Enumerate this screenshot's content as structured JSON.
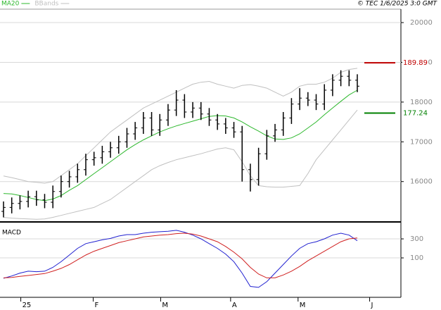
{
  "chart_data": [
    {
      "type": "ohlc",
      "source": "© TEC 1/6/2025 3:0 GMT",
      "xlim": [
        0,
        48.3
      ],
      "ylim": [
        15020,
        20320
      ],
      "yticks": [
        16000,
        17000,
        18000,
        19000,
        20000
      ],
      "grid": true,
      "bar_color": "#000000",
      "open": [
        15250,
        15350,
        15450,
        15500,
        15620,
        15540,
        15480,
        15750,
        16000,
        16120,
        16300,
        16550,
        16600,
        16750,
        16850,
        17000,
        17200,
        17350,
        17600,
        17300,
        17550,
        17800,
        18050,
        17750,
        17850,
        17700,
        17550,
        17450,
        17350,
        17250,
        16300,
        16050,
        16700,
        17150,
        17300,
        17600,
        17950,
        18100,
        18050,
        17950,
        18300,
        18550,
        18650,
        18550
      ],
      "high": [
        15500,
        15600,
        15650,
        15770,
        15770,
        15690,
        15900,
        16150,
        16270,
        16450,
        16700,
        16750,
        16900,
        17000,
        17150,
        17350,
        17500,
        17750,
        17750,
        17700,
        17950,
        18300,
        18200,
        18000,
        18000,
        17850,
        17700,
        17600,
        17500,
        17400,
        16450,
        16850,
        17300,
        17450,
        17750,
        18100,
        18350,
        18250,
        18200,
        18450,
        18700,
        18800,
        18800,
        18700
      ],
      "low": [
        15100,
        15200,
        15300,
        15350,
        15390,
        15330,
        15330,
        15600,
        15850,
        15970,
        16150,
        16400,
        16450,
        16600,
        16700,
        16850,
        17050,
        17200,
        17150,
        17150,
        17400,
        17650,
        17600,
        17600,
        17550,
        17400,
        17300,
        17200,
        17100,
        16000,
        15750,
        15900,
        16550,
        17000,
        17150,
        17450,
        17800,
        17900,
        17800,
        17800,
        18150,
        18400,
        18400,
        18250
      ],
      "close": [
        15350,
        15450,
        15500,
        15620,
        15540,
        15480,
        15750,
        16000,
        16120,
        16300,
        16550,
        16600,
        16750,
        16850,
        17000,
        17200,
        17350,
        17600,
        17300,
        17550,
        17800,
        18050,
        17750,
        17850,
        17700,
        17550,
        17450,
        17350,
        17250,
        16300,
        16050,
        16700,
        17150,
        17300,
        17600,
        17950,
        18100,
        18050,
        17950,
        18300,
        18550,
        18650,
        18550,
        18400
      ],
      "series": [
        {
          "name": "MA20",
          "color": "#2db82d",
          "values": [
            15700,
            15690,
            15650,
            15600,
            15550,
            15520,
            15560,
            15650,
            15780,
            15900,
            16050,
            16200,
            16350,
            16500,
            16650,
            16800,
            16930,
            17050,
            17150,
            17250,
            17330,
            17400,
            17460,
            17520,
            17580,
            17640,
            17660,
            17650,
            17600,
            17500,
            17380,
            17270,
            17150,
            17070,
            17060,
            17100,
            17200,
            17350,
            17500,
            17680,
            17850,
            18020,
            18180,
            18300
          ]
        },
        {
          "name": "BBands",
          "color": "#c0c0c0",
          "upper": [
            16140,
            16100,
            16050,
            16000,
            15980,
            15960,
            16000,
            16150,
            16300,
            16450,
            16650,
            16850,
            17050,
            17250,
            17400,
            17550,
            17700,
            17850,
            17950,
            18050,
            18150,
            18250,
            18350,
            18450,
            18500,
            18520,
            18450,
            18400,
            18350,
            18420,
            18440,
            18400,
            18350,
            18250,
            18150,
            18250,
            18400,
            18450,
            18450,
            18500,
            18600,
            18750,
            18820,
            18850
          ],
          "lower": [
            15100,
            15080,
            15070,
            15060,
            15050,
            15060,
            15100,
            15150,
            15200,
            15250,
            15300,
            15350,
            15450,
            15550,
            15700,
            15850,
            16000,
            16150,
            16300,
            16400,
            16480,
            16550,
            16600,
            16650,
            16700,
            16760,
            16820,
            16850,
            16800,
            16500,
            16150,
            15900,
            15870,
            15860,
            15860,
            15880,
            15900,
            16200,
            16550,
            16800,
            17050,
            17300,
            17550,
            17800
          ]
        }
      ],
      "markers": [
        {
          "value": 18989,
          "label": "189.89",
          "color": "#c00000"
        },
        {
          "value": 17724,
          "label": "177.24",
          "color": "#008000"
        }
      ]
    },
    {
      "type": "line",
      "title": "MACD",
      "xlim": [
        0,
        48.3
      ],
      "ylim": [
        -300,
        456
      ],
      "yticks": [
        100,
        300
      ],
      "grid": true,
      "xticks": [
        {
          "value": 2.1,
          "label": "25"
        },
        {
          "value": 10.9,
          "label": "F"
        },
        {
          "value": 19.1,
          "label": "M"
        },
        {
          "value": 27.6,
          "label": "A"
        },
        {
          "value": 35.8,
          "label": "M"
        },
        {
          "value": 44.5,
          "label": "J"
        }
      ],
      "series": [
        {
          "color": "#2020d0",
          "values": [
            -115,
            -90,
            -60,
            -40,
            -45,
            -40,
            0,
            60,
            130,
            200,
            250,
            270,
            290,
            305,
            330,
            345,
            345,
            360,
            370,
            375,
            380,
            390,
            370,
            340,
            300,
            250,
            200,
            140,
            60,
            -60,
            -200,
            -210,
            -150,
            -60,
            30,
            120,
            200,
            250,
            270,
            300,
            340,
            360,
            340,
            280
          ]
        },
        {
          "color": "#d02020",
          "values": [
            -110,
            -105,
            -95,
            -85,
            -75,
            -65,
            -40,
            -10,
            30,
            80,
            130,
            170,
            200,
            230,
            260,
            280,
            300,
            320,
            330,
            340,
            345,
            355,
            360,
            350,
            330,
            300,
            270,
            220,
            160,
            90,
            0,
            -70,
            -110,
            -110,
            -80,
            -40,
            10,
            70,
            120,
            170,
            220,
            270,
            300,
            310
          ]
        }
      ]
    }
  ]
}
